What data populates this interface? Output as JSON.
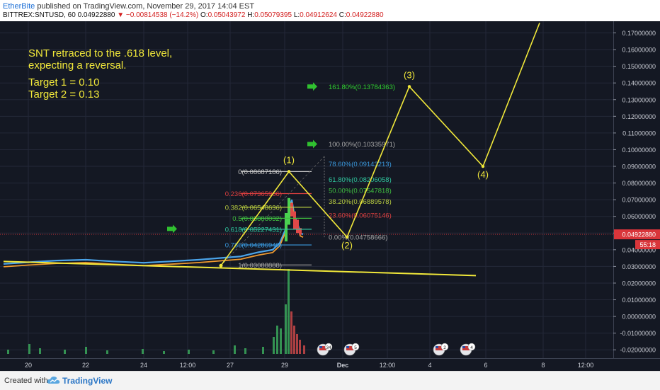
{
  "header": {
    "author": "EtherBite",
    "published": "published on TradingView.com, November 29, 2017 14:04 EST",
    "symbol": "BITTREX:SNTUSD, 60",
    "price": "0.04922880",
    "change": "−0.00814538 (−14.2%)",
    "o_label": "O:",
    "o": "0.05043972",
    "h_label": "H:",
    "h": "0.05079395",
    "l_label": "L:",
    "l": "0.04912624",
    "c_label": "C:",
    "c": "0.04922880"
  },
  "footer": {
    "created": "Created with",
    "brand": "TradingView"
  },
  "colors": {
    "background": "#141823",
    "wave": "#f1e83a",
    "grid": "#232838",
    "price_tag": "#d9353a",
    "fib_ext": "#30c030"
  },
  "chart_data": {
    "type": "line",
    "ylim": [
      -0.025,
      0.177
    ],
    "y_ticks": [
      "0.17000000",
      "0.16000000",
      "0.15000000",
      "0.14000000",
      "0.13000000",
      "0.12000000",
      "0.11000000",
      "0.10000000",
      "0.09000000",
      "0.08000000",
      "0.07000000",
      "0.06000000",
      "0.05000000",
      "0.04000000",
      "0.03000000",
      "0.02000000",
      "0.01000000",
      "0.00000000",
      "-0.01000000",
      "-0.02000000"
    ],
    "x_ticks": [
      "20",
      "22",
      "24",
      "12:00",
      "27",
      "29",
      "Dec",
      "12:00",
      "4",
      "6",
      "8",
      "12:00"
    ],
    "current_price": "0.04922880",
    "countdown": "55:18",
    "annotation": {
      "line1": "SNT retraced to the .618 level,",
      "line2": "expecting a reversal.",
      "target1": "Target 1 = 0.10",
      "target2": "Target 2 = 0.13"
    },
    "waves": [
      {
        "label": "(1)",
        "y": 0.08687186
      },
      {
        "label": "(2)",
        "y": 0.04758666
      },
      {
        "label": "(3)",
        "y": 0.13784363
      },
      {
        "label": "(4)",
        "y": 0.09
      },
      {
        "label": "",
        "y": 0.176
      }
    ],
    "wave_start": 0.0305,
    "fib_retracement": [
      {
        "label": "0(0.08687186)",
        "y": 0.08687186,
        "color": "#c8c8c8"
      },
      {
        "label": "0.236(0.07365966)",
        "y": 0.07365966,
        "color": "#e04040"
      },
      {
        "label": "0.382(0.06548636)",
        "y": 0.06548636,
        "color": "#b8cc40"
      },
      {
        "label": "0.5(0.05888032)",
        "y": 0.05888032,
        "color": "#40c040"
      },
      {
        "label": "0.618(0.05227431)",
        "y": 0.05227431,
        "color": "#30c8a0"
      },
      {
        "label": "0.786(0.04286940)",
        "y": 0.0428694,
        "color": "#3a9ae0"
      },
      {
        "label": "1(0.03088888)",
        "y": 0.03088888,
        "color": "#a0a0a0"
      }
    ],
    "fib_extension": [
      {
        "label": "161.80%(0.13784363)",
        "y": 0.13784363,
        "color": "#30d030"
      },
      {
        "label": "100.00%(0.10335971)",
        "y": 0.10335971,
        "color": "#a8a8a8"
      },
      {
        "label": "78.60%(0.09143213)",
        "y": 0.09143213,
        "color": "#3a9ae0"
      },
      {
        "label": "61.80%(0.08206058)",
        "y": 0.08206058,
        "color": "#30c8a0"
      },
      {
        "label": "50.00%(0.07547818)",
        "y": 0.07547818,
        "color": "#40c040"
      },
      {
        "label": "38.20%(0.06889578)",
        "y": 0.06889578,
        "color": "#b8cc40"
      },
      {
        "label": "23.60%(0.06075146)",
        "y": 0.06075146,
        "color": "#e04040"
      },
      {
        "label": "0.00%(0.04758666)",
        "y": 0.04758666,
        "color": "#a8a8a8"
      }
    ],
    "event_badges": [
      "34",
      "5",
      "2",
      "4"
    ]
  }
}
